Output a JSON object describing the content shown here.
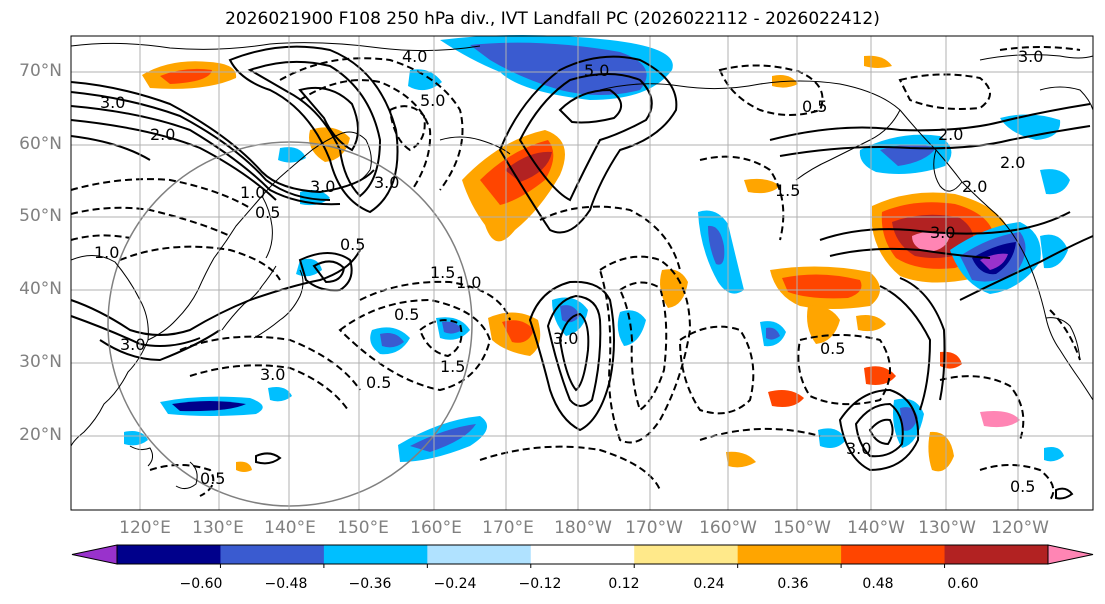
{
  "title": "2026021900 F108 250 hPa div., IVT Landfall PC (2026022112 - 2026022412)",
  "lat_labels": [
    "70°N",
    "60°N",
    "50°N",
    "40°N",
    "30°N",
    "20°N"
  ],
  "lon_labels": [
    "120°E",
    "130°E",
    "140°E",
    "150°E",
    "160°E",
    "170°E",
    "180°W",
    "170°W",
    "160°W",
    "150°W",
    "140°W",
    "130°W",
    "120°W"
  ],
  "contour_labels": [
    "4.0",
    "5.0",
    "5.0",
    "3.0",
    "3.0",
    "2.0",
    "2.0",
    "1.5",
    "1.5",
    "1.0",
    "1.0",
    "0.5",
    "0.5",
    "0.5",
    "0.5",
    "3.0",
    "3.0",
    "3.0",
    "3.0",
    "0.5",
    "0.5",
    "1.5",
    "2.0",
    "3.0",
    "3.0",
    "0.5",
    "1.0",
    "2.0",
    "3.0",
    "0.5"
  ],
  "colorbar": {
    "tick_labels": [
      "−0.60",
      "−0.48",
      "−0.36",
      "−0.24",
      "−0.12",
      "0.12",
      "0.24",
      "0.36",
      "0.48",
      "0.60"
    ],
    "colors": [
      "#9932cc",
      "#00008b",
      "#3a5bd0",
      "#00bfff",
      "#b0e2ff",
      "#ffffff",
      "#ffe98a",
      "#ffa500",
      "#ff4500",
      "#b22222",
      "#ff85b4"
    ]
  },
  "fill_colors": {
    "neg_strong": "#00008b",
    "neg_mid": "#3a5bd0",
    "neg_low": "#00bfff",
    "neg_weak": "#b0e2ff",
    "pos_weak": "#ffe98a",
    "pos_low": "#ffa500",
    "pos_mid": "#ff4500",
    "pos_strong": "#b22222",
    "pos_max": "#ff85b4",
    "purple": "#9932cc"
  }
}
